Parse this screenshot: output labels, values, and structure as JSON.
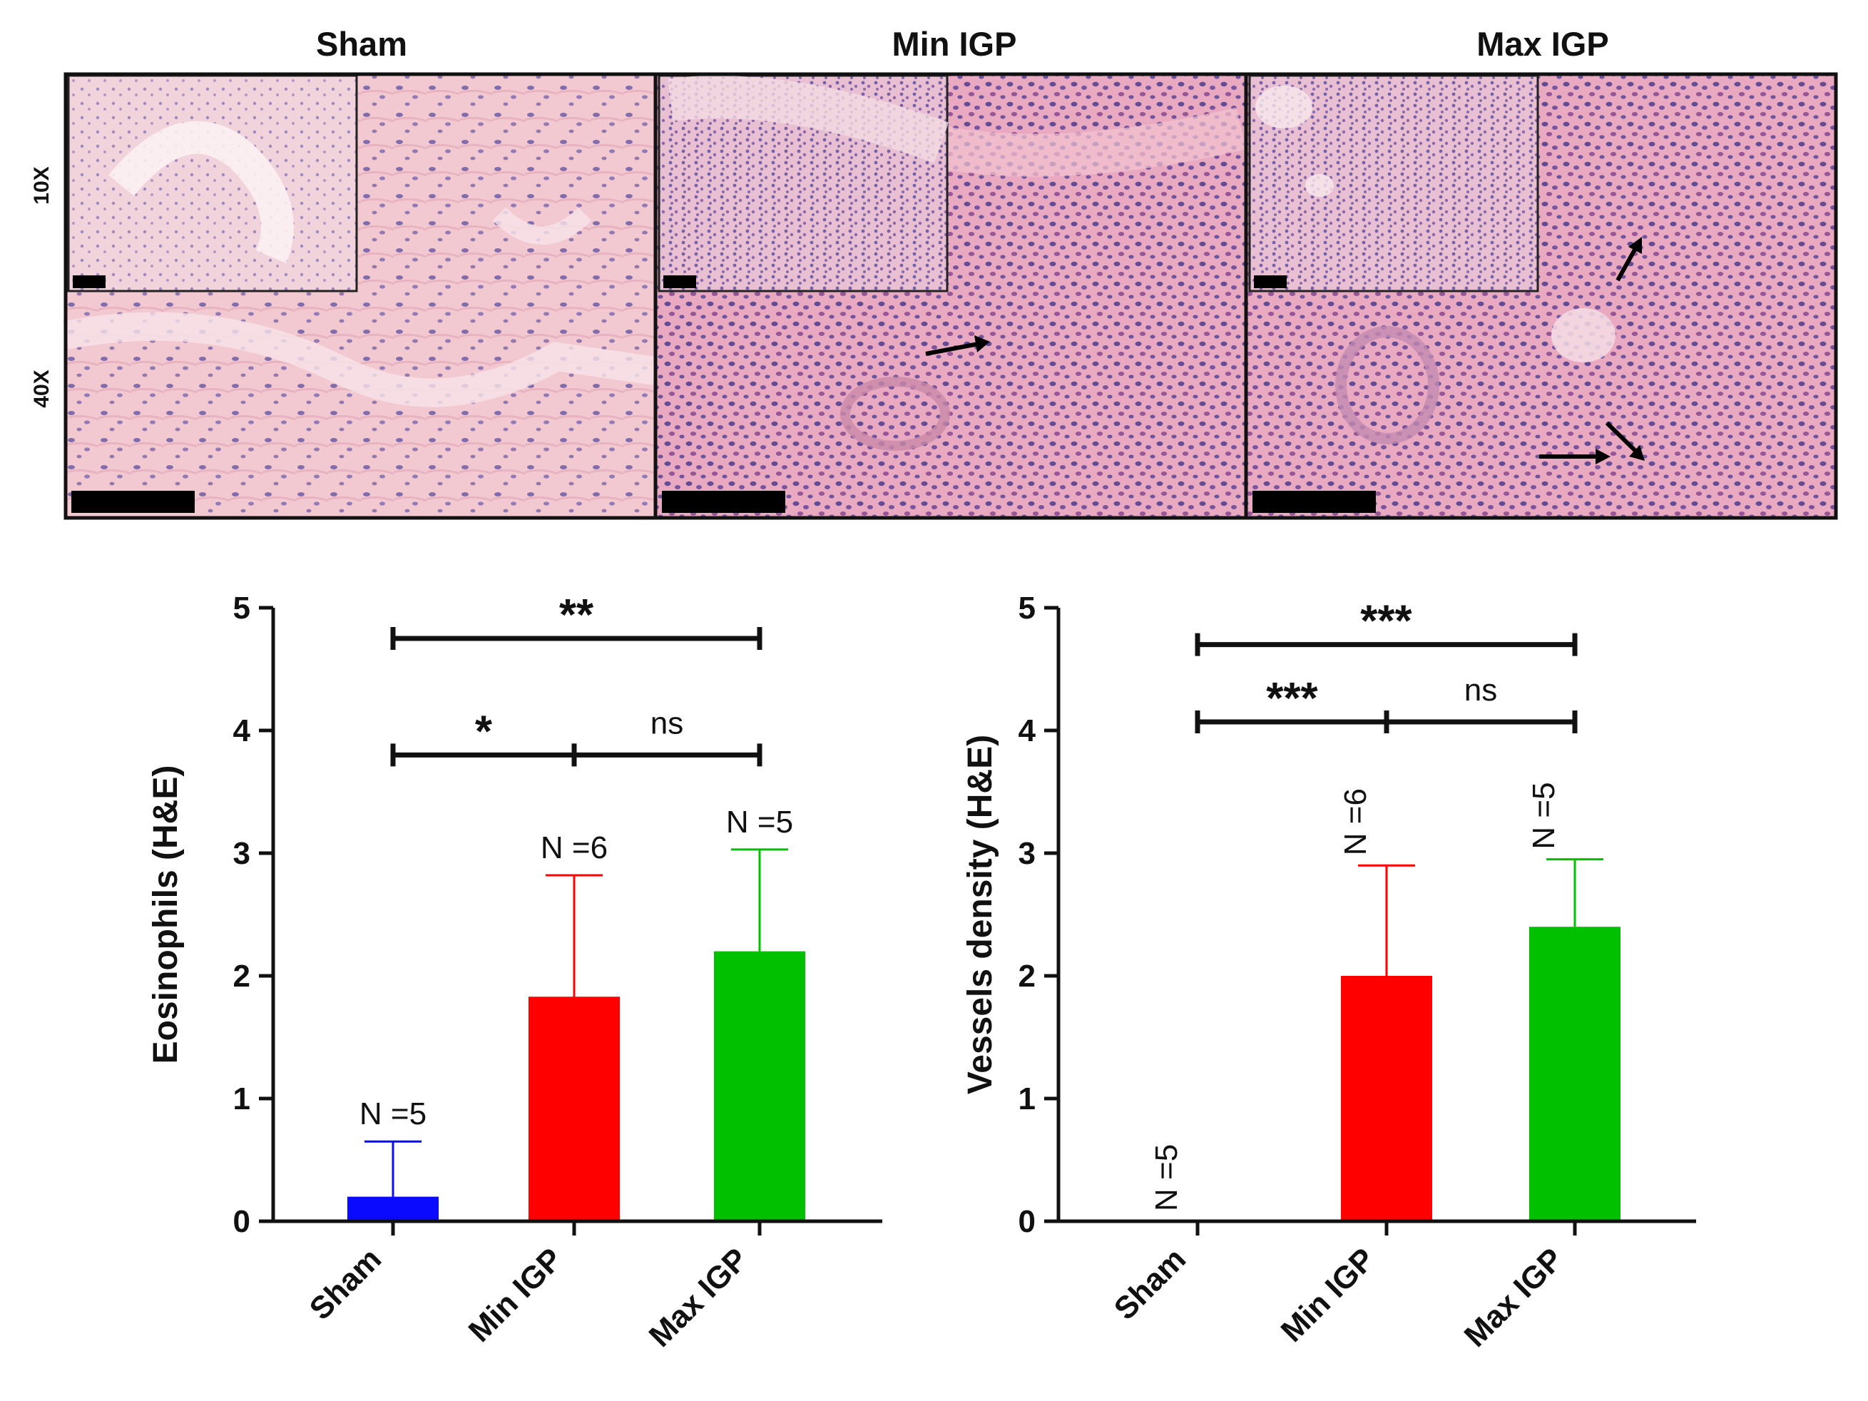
{
  "micrographs": {
    "columns": [
      "Sham",
      "Min IGP",
      "Max IGP"
    ],
    "row_labels": [
      "10X",
      "40X"
    ]
  },
  "chart_data": [
    {
      "type": "bar",
      "title": "",
      "ylabel": "Eosinophils (H&E)",
      "xlabel": "",
      "categories": [
        "Sham",
        "Min IGP",
        "Max IGP"
      ],
      "values": [
        0.2,
        1.83,
        2.2
      ],
      "error_upper": [
        0.65,
        2.82,
        3.03
      ],
      "bar_colors": [
        "#0a0aff",
        "#ff0000",
        "#00c000"
      ],
      "n_labels": [
        "N =5",
        "N =6",
        "N =5"
      ],
      "n_label_orientation": "horizontal",
      "ylim": [
        0,
        5
      ],
      "yticks": [
        "0",
        "1",
        "2",
        "3",
        "4",
        "5"
      ],
      "significance": [
        {
          "from": 0,
          "to": 2,
          "level": 4.75,
          "label": "**"
        },
        {
          "from": 0,
          "to": 1,
          "level": 3.8,
          "label": "*"
        },
        {
          "from": 1,
          "to": 2,
          "level": 3.8,
          "label": "ns"
        }
      ]
    },
    {
      "type": "bar",
      "title": "",
      "ylabel": "Vessels density (H&E)",
      "xlabel": "",
      "categories": [
        "Sham",
        "Min IGP",
        "Max IGP"
      ],
      "values": [
        0,
        2.0,
        2.4
      ],
      "error_upper": [
        0,
        2.9,
        2.95
      ],
      "bar_colors": [
        "#0a0aff",
        "#ff0000",
        "#00c000"
      ],
      "n_labels": [
        "N =5",
        "N =6",
        "N =5"
      ],
      "n_label_orientation": "vertical",
      "ylim": [
        0,
        5
      ],
      "yticks": [
        "0",
        "1",
        "2",
        "3",
        "4",
        "5"
      ],
      "significance": [
        {
          "from": 0,
          "to": 2,
          "level": 4.7,
          "label": "***"
        },
        {
          "from": 0,
          "to": 1,
          "level": 4.07,
          "label": "***"
        },
        {
          "from": 1,
          "to": 2,
          "level": 4.07,
          "label": "ns"
        }
      ]
    }
  ]
}
